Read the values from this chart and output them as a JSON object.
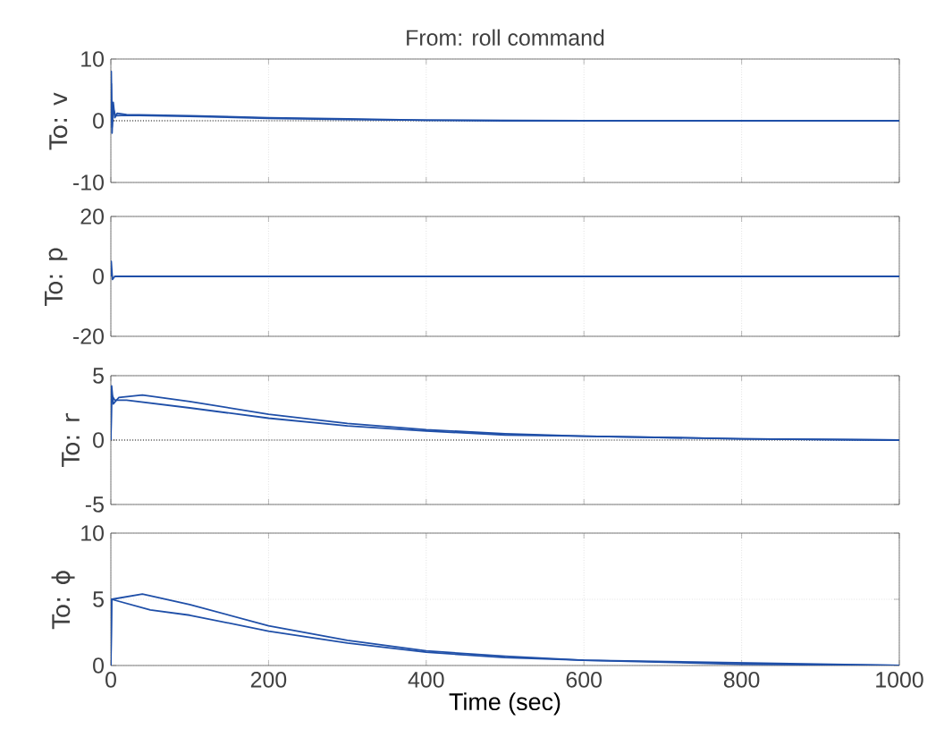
{
  "chart_data": [
    {
      "type": "line",
      "title": "From: roll command",
      "ylabel": "To: v",
      "xlim": [
        0,
        1000
      ],
      "xticks": [
        0,
        200,
        400,
        600,
        800,
        1000
      ],
      "ylim": [
        -10,
        10
      ],
      "yticks": [
        -10,
        0,
        10
      ],
      "tick_labels": "y",
      "grid": true,
      "ref_lines": [
        {
          "axis": "y",
          "value": 0,
          "color": "#000000",
          "line_style": "dotted"
        }
      ],
      "series": [
        {
          "color": "#1f4fa8",
          "x": [
            0,
            0.5,
            1.5,
            3,
            5,
            8,
            20,
            100,
            200,
            300,
            400,
            500,
            700,
            1000
          ],
          "values": [
            0,
            8,
            -2,
            3,
            0.5,
            1.2,
            1,
            0.8,
            0.5,
            0.3,
            0.1,
            0,
            0,
            0
          ]
        },
        {
          "color": "#1f4fa8",
          "x": [
            0,
            0.5,
            1.5,
            3,
            6,
            20,
            100,
            200,
            300,
            400,
            600,
            1000
          ],
          "values": [
            0,
            6,
            -1,
            2,
            0.8,
            0.9,
            0.7,
            0.4,
            0.2,
            0.1,
            0,
            0
          ]
        }
      ]
    },
    {
      "type": "line",
      "ylabel": "To: p",
      "xlim": [
        0,
        1000
      ],
      "xticks": [
        0,
        200,
        400,
        600,
        800,
        1000
      ],
      "ylim": [
        -20,
        20
      ],
      "yticks": [
        -20,
        0,
        20
      ],
      "tick_labels": "y",
      "grid": true,
      "series": [
        {
          "color": "#1f4fa8",
          "x": [
            0,
            0.5,
            2,
            5,
            1000
          ],
          "values": [
            0,
            5,
            -1,
            0,
            0
          ]
        }
      ]
    },
    {
      "type": "line",
      "ylabel": "To: r",
      "xlim": [
        0,
        1000
      ],
      "xticks": [
        0,
        200,
        400,
        600,
        800,
        1000
      ],
      "ylim": [
        -5,
        5
      ],
      "yticks": [
        -5,
        0,
        5
      ],
      "tick_labels": "y",
      "grid": true,
      "ref_lines": [
        {
          "axis": "y",
          "value": 0,
          "color": "#000000",
          "line_style": "dotted"
        }
      ],
      "series": [
        {
          "color": "#1f4fa8",
          "x": [
            0,
            1,
            3,
            10,
            40,
            100,
            200,
            300,
            400,
            500,
            600,
            800,
            1000
          ],
          "values": [
            0,
            4.2,
            2.8,
            3.3,
            3.5,
            3.0,
            2.0,
            1.3,
            0.8,
            0.5,
            0.3,
            0.1,
            0
          ]
        },
        {
          "color": "#1f4fa8",
          "x": [
            0,
            1,
            5,
            20,
            100,
            200,
            300,
            400,
            500,
            600,
            800,
            1000
          ],
          "values": [
            0,
            3.5,
            3.1,
            3.1,
            2.5,
            1.7,
            1.1,
            0.7,
            0.4,
            0.3,
            0.1,
            0
          ]
        }
      ]
    },
    {
      "type": "line",
      "ylabel": "To: ϕ",
      "xlabel": "Time (sec)",
      "xlim": [
        0,
        1000
      ],
      "xticks": [
        0,
        200,
        400,
        600,
        800,
        1000
      ],
      "ylim": [
        0,
        10
      ],
      "yticks": [
        0,
        5,
        10
      ],
      "grid": true,
      "series": [
        {
          "color": "#1f4fa8",
          "x": [
            0,
            1,
            40,
            100,
            200,
            300,
            400,
            500,
            600,
            800,
            1000
          ],
          "values": [
            0,
            5,
            5.4,
            4.6,
            3.0,
            1.9,
            1.1,
            0.7,
            0.4,
            0.2,
            0
          ]
        },
        {
          "color": "#1f4fa8",
          "x": [
            0,
            1,
            50,
            100,
            200,
            300,
            400,
            500,
            600,
            800,
            1000
          ],
          "values": [
            0,
            5,
            4.2,
            3.8,
            2.6,
            1.7,
            1.0,
            0.6,
            0.4,
            0.1,
            0
          ]
        }
      ]
    }
  ]
}
